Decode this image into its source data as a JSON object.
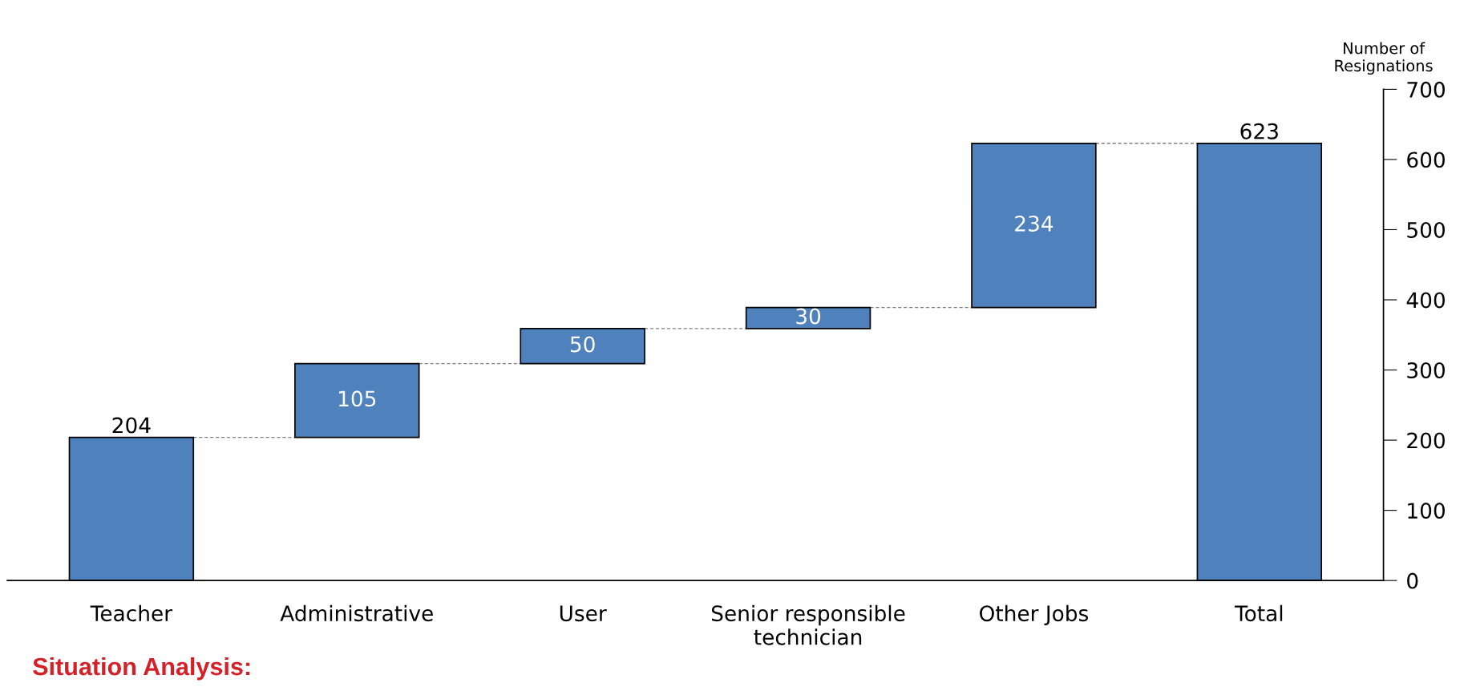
{
  "chart_data": {
    "type": "bar",
    "categories": [
      "Teacher",
      "Administrative",
      "User",
      "Senior responsible\ntechnician",
      "Other Jobs",
      "Total"
    ],
    "values": [
      204,
      105,
      50,
      30,
      234,
      623
    ],
    "base": [
      0,
      204,
      309,
      359,
      389,
      0
    ],
    "color": "#4f81bd",
    "ylabel": "Number of\nResignations",
    "ylim": [
      0,
      700
    ],
    "yticks": [
      0,
      100,
      200,
      300,
      400,
      500,
      600,
      700
    ],
    "data_labels": true,
    "grid": false,
    "annotations": [
      "Situation Analysis:"
    ]
  }
}
